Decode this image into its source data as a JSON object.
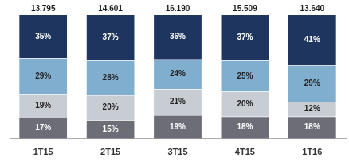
{
  "chart_data": {
    "type": "bar",
    "stacked": true,
    "categories": [
      "1T15",
      "2T15",
      "3T15",
      "4T15",
      "1T16"
    ],
    "series": [
      {
        "color": "#6d6d78",
        "values": [
          17,
          15,
          19,
          18,
          18
        ],
        "value_labels": [
          "17%",
          "15%",
          "19%",
          "18%",
          "18%"
        ]
      },
      {
        "color": "#c8cdd4",
        "values": [
          19,
          20,
          21,
          20,
          12
        ],
        "value_labels": [
          "19%",
          "20%",
          "21%",
          "20%",
          "12%"
        ]
      },
      {
        "color": "#7faecf",
        "values": [
          29,
          28,
          24,
          25,
          29
        ],
        "value_labels": [
          "29%",
          "28%",
          "24%",
          "25%",
          "29%"
        ]
      },
      {
        "color": "#1e3560",
        "values": [
          35,
          37,
          36,
          37,
          41
        ],
        "value_labels": [
          "35%",
          "37%",
          "36%",
          "37%",
          "41%"
        ]
      }
    ],
    "totals": [
      "13.795",
      "14.601",
      "16.190",
      "15.509",
      "13.640"
    ],
    "ylim": [
      0,
      108
    ],
    "grid": false,
    "data_labels": true,
    "tick_labels": "x"
  }
}
